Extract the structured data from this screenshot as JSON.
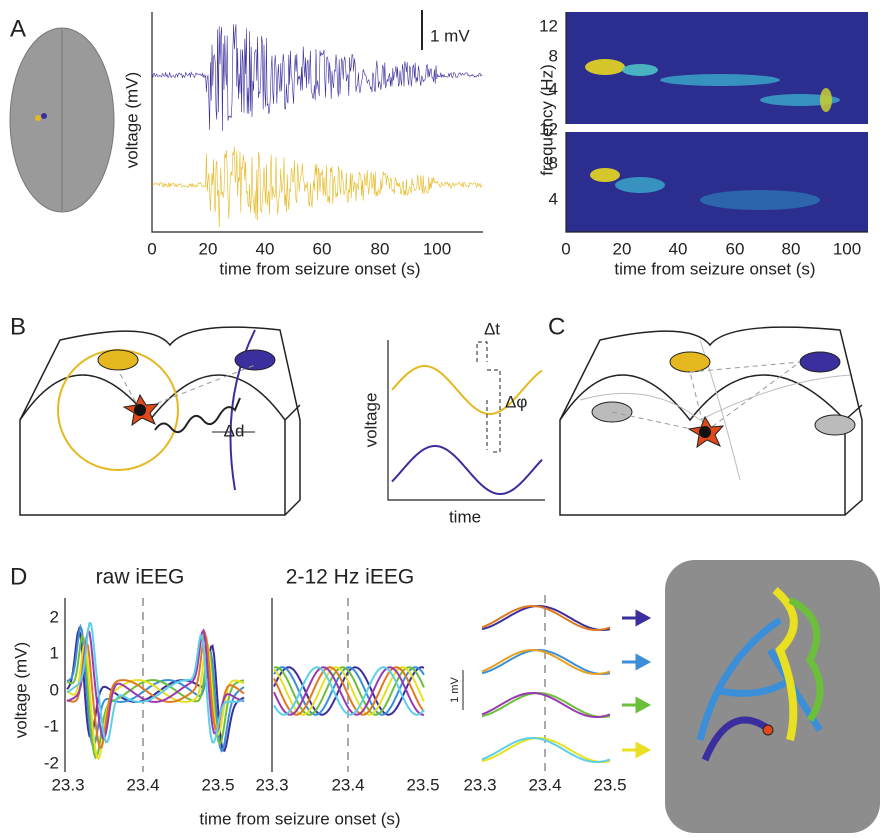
{
  "panel_labels": [
    "A",
    "B",
    "C",
    "D"
  ],
  "panel_a": {
    "scale_bar": "1 mV",
    "y_label": "voltage (mV)",
    "x_label": "time from seizure onset (s)",
    "x_ticks": [
      "0",
      "20",
      "40",
      "60",
      "80",
      "100"
    ],
    "spectrogram_y_label": "frequency (Hz)",
    "spectrogram_y_ticks": [
      "12",
      "8",
      "4"
    ]
  },
  "panel_b": {
    "distance": "Δd",
    "time_lag": "Δt",
    "phase_lag": "Δφ",
    "y_label": "voltage",
    "x_label": "time"
  },
  "panel_d": {
    "raw_title": "raw iEEG",
    "filtered_title": "2-12 Hz iEEG",
    "y_label": "voltage (mV)",
    "y_ticks": [
      "2",
      "1",
      "0",
      "-1",
      "-2"
    ],
    "x_ticks": [
      "23.3",
      "23.4",
      "23.5"
    ],
    "scale_bar": "1 mV",
    "x_label": "time from seizure onset (s)"
  }
}
